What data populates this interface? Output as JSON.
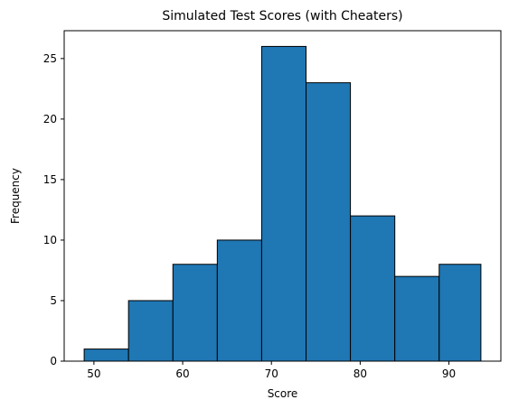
{
  "chart_data": {
    "type": "bar",
    "title": "Simulated Test Scores (with Cheaters)",
    "xlabel": "Score",
    "ylabel": "Frequency",
    "bin_edges": [
      48.9,
      53.9,
      58.9,
      63.9,
      68.9,
      73.9,
      78.9,
      83.9,
      88.9,
      93.6
    ],
    "values": [
      1,
      5,
      8,
      10,
      26,
      23,
      12,
      7,
      8
    ],
    "xlim": [
      46.65,
      95.85
    ],
    "ylim": [
      0,
      27.3
    ],
    "x_ticks": [
      50,
      60,
      70,
      80,
      90
    ],
    "y_ticks": [
      0,
      5,
      10,
      15,
      20,
      25
    ],
    "bar_color": "#1f77b4",
    "edge_color": "#000000",
    "grid": false,
    "legend": false
  }
}
